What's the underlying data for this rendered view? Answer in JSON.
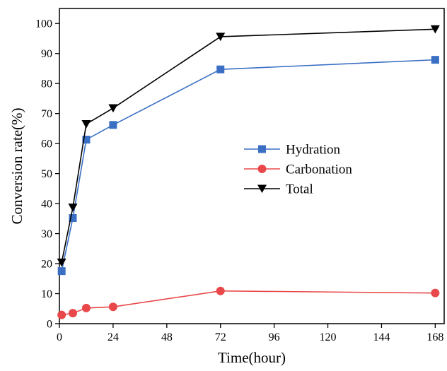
{
  "chart_data": {
    "type": "line",
    "xlabel": "Time(hour)",
    "ylabel": "Conversion rate(%)",
    "xlim": [
      0,
      172
    ],
    "ylim": [
      0,
      105
    ],
    "xticks": [
      0,
      24,
      48,
      72,
      96,
      120,
      144,
      168
    ],
    "yticks": [
      0,
      10,
      20,
      30,
      40,
      50,
      60,
      70,
      80,
      90,
      100
    ],
    "grid": false,
    "legend_position": "center-right",
    "series": [
      {
        "name": "Hydration",
        "color": "#3a6fc4",
        "marker": "square",
        "x": [
          1,
          6,
          12,
          24,
          72,
          168
        ],
        "y": [
          17.5,
          35.2,
          61.3,
          66.2,
          84.7,
          87.9
        ]
      },
      {
        "name": "Carbonation",
        "color": "#e8484a",
        "marker": "circle",
        "x": [
          1,
          6,
          12,
          24,
          72,
          168
        ],
        "y": [
          2.9,
          3.5,
          5.2,
          5.6,
          10.9,
          10.2
        ]
      },
      {
        "name": "Total",
        "color": "#000000",
        "marker": "triangle-down",
        "x": [
          1,
          6,
          12,
          24,
          72,
          168
        ],
        "y": [
          20.4,
          38.7,
          66.5,
          71.8,
          95.6,
          98.1
        ]
      }
    ]
  }
}
